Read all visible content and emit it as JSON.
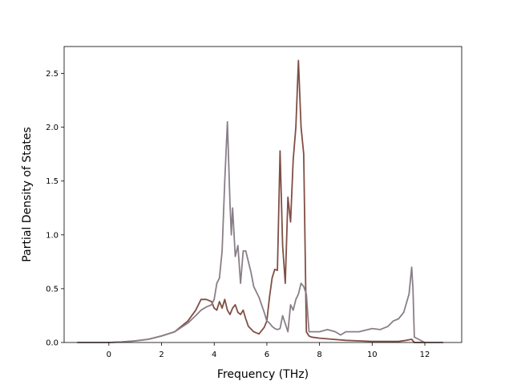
{
  "chart_data": {
    "type": "line",
    "xlabel": "Frequency (THz)",
    "ylabel": "Partial Density of States",
    "xlim": [
      -1.7,
      13.4
    ],
    "ylim": [
      0,
      2.75
    ],
    "xticks": [
      0,
      2,
      4,
      6,
      8,
      10,
      12
    ],
    "xtick_labels": [
      "0",
      "2",
      "4",
      "6",
      "8",
      "10",
      "12"
    ],
    "yticks": [
      0.0,
      0.5,
      1.0,
      1.5,
      2.0,
      2.5
    ],
    "ytick_labels": [
      "0.0",
      "0.5",
      "1.0",
      "1.5",
      "2.0",
      "2.5"
    ],
    "grid": false,
    "legend": "none",
    "series": [
      {
        "color": "#7f4f45",
        "x": [
          -1.2,
          -0.5,
          0,
          0.5,
          1,
          1.5,
          2,
          2.5,
          3,
          3.3,
          3.5,
          3.7,
          3.9,
          4.0,
          4.1,
          4.2,
          4.3,
          4.4,
          4.5,
          4.6,
          4.7,
          4.8,
          4.9,
          5.0,
          5.1,
          5.2,
          5.3,
          5.5,
          5.7,
          5.9,
          6.0,
          6.1,
          6.2,
          6.3,
          6.4,
          6.5,
          6.6,
          6.7,
          6.8,
          6.9,
          7.0,
          7.1,
          7.2,
          7.3,
          7.4,
          7.5,
          7.6,
          7.7,
          8.0,
          8.5,
          9.0,
          9.5,
          10,
          10.5,
          11,
          11.3,
          11.5,
          11.6,
          12,
          12.7
        ],
        "values": [
          0,
          0,
          0,
          0.005,
          0.015,
          0.03,
          0.06,
          0.1,
          0.2,
          0.3,
          0.4,
          0.4,
          0.38,
          0.32,
          0.3,
          0.38,
          0.32,
          0.4,
          0.3,
          0.26,
          0.32,
          0.35,
          0.28,
          0.26,
          0.3,
          0.22,
          0.15,
          0.1,
          0.08,
          0.14,
          0.2,
          0.42,
          0.6,
          0.68,
          0.67,
          1.78,
          0.9,
          0.55,
          1.35,
          1.12,
          1.7,
          2.0,
          2.62,
          2.0,
          1.75,
          0.1,
          0.06,
          0.05,
          0.04,
          0.03,
          0.02,
          0.015,
          0.01,
          0.01,
          0.01,
          0.02,
          0.03,
          0,
          0,
          0
        ]
      },
      {
        "color": "#8a7f88",
        "x": [
          -1.2,
          -0.5,
          0,
          0.5,
          1,
          1.5,
          2,
          2.5,
          3,
          3.3,
          3.5,
          3.7,
          3.9,
          4.0,
          4.1,
          4.2,
          4.3,
          4.4,
          4.5,
          4.6,
          4.65,
          4.7,
          4.8,
          4.9,
          5.0,
          5.1,
          5.2,
          5.3,
          5.4,
          5.5,
          5.7,
          5.9,
          6.0,
          6.1,
          6.2,
          6.3,
          6.4,
          6.5,
          6.6,
          6.8,
          6.9,
          7.0,
          7.1,
          7.2,
          7.3,
          7.4,
          7.5,
          7.6,
          7.7,
          8.0,
          8.3,
          8.6,
          8.8,
          9.0,
          9.5,
          10,
          10.3,
          10.6,
          10.8,
          11.0,
          11.2,
          11.4,
          11.5,
          11.55,
          11.6,
          12,
          12.7
        ],
        "values": [
          0,
          0,
          0,
          0.005,
          0.015,
          0.03,
          0.06,
          0.1,
          0.18,
          0.25,
          0.3,
          0.33,
          0.35,
          0.4,
          0.55,
          0.6,
          0.85,
          1.5,
          2.05,
          1.3,
          1.0,
          1.25,
          0.8,
          0.9,
          0.55,
          0.85,
          0.85,
          0.75,
          0.65,
          0.52,
          0.42,
          0.28,
          0.2,
          0.18,
          0.15,
          0.13,
          0.12,
          0.13,
          0.25,
          0.1,
          0.35,
          0.3,
          0.4,
          0.45,
          0.55,
          0.52,
          0.45,
          0.1,
          0.1,
          0.1,
          0.12,
          0.1,
          0.07,
          0.1,
          0.1,
          0.13,
          0.12,
          0.15,
          0.2,
          0.22,
          0.28,
          0.45,
          0.7,
          0.5,
          0.05,
          0,
          0
        ]
      }
    ]
  }
}
